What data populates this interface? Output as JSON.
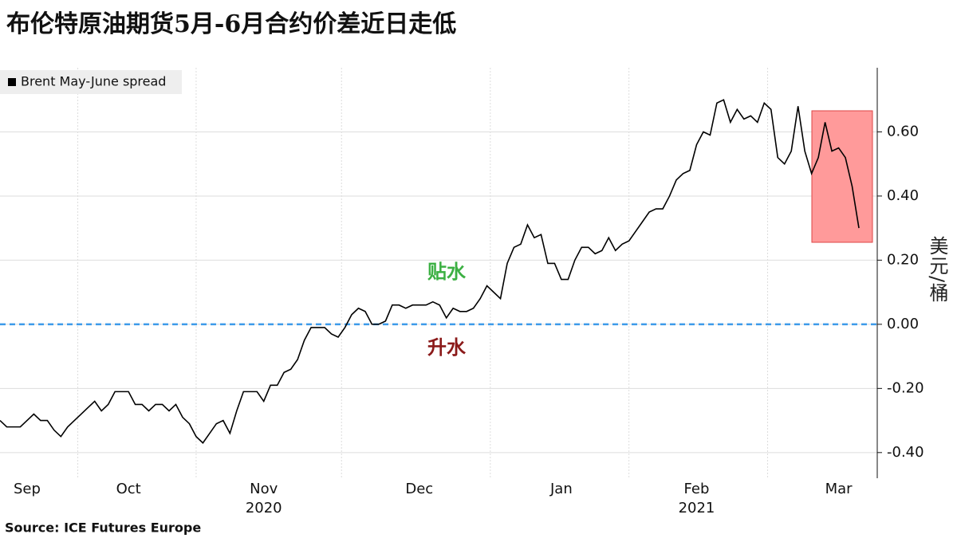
{
  "chart_data": {
    "type": "line",
    "title": "布伦特原油期货5月-6月合约价差近日走低",
    "source": "Source: ICE Futures Europe",
    "y_axis_label": "美元/桶",
    "annotations": [
      {
        "text": "贴水",
        "color": "#3cb043"
      },
      {
        "text": "升水",
        "color": "#8b1a1a"
      }
    ],
    "reference_line": {
      "value": 0,
      "color": "#3d9be9"
    },
    "legend": "top-left",
    "grid": true,
    "categories": [
      null,
      null,
      null,
      null,
      "Sep",
      null,
      null,
      null,
      null,
      null,
      null,
      null,
      null,
      null,
      null,
      null,
      null,
      null,
      null,
      "Oct",
      null,
      null,
      null,
      null,
      null,
      null,
      null,
      null,
      null,
      null,
      null,
      null,
      null,
      null,
      null,
      null,
      null,
      null,
      null,
      "Nov",
      null,
      null,
      null,
      null,
      null,
      null,
      null,
      null,
      null,
      null,
      null,
      null,
      null,
      null,
      null,
      null,
      null,
      null,
      null,
      null,
      null,
      null,
      "Dec",
      null,
      null,
      null,
      null,
      null,
      null,
      null,
      null,
      null,
      null,
      null,
      null,
      null,
      null,
      null,
      null,
      null,
      null,
      null,
      null,
      "Jan",
      null,
      null,
      null,
      null,
      null,
      null,
      null,
      null,
      null,
      null,
      null,
      null,
      null,
      null,
      null,
      null,
      null,
      null,
      null,
      "Feb",
      null,
      null,
      null,
      null,
      null,
      null,
      null,
      null,
      null,
      null,
      null,
      null,
      null,
      null,
      null,
      null,
      null,
      null,
      null,
      null,
      "Mar",
      null,
      null,
      null
    ],
    "category_years": [
      null,
      null,
      null,
      null,
      null,
      null,
      null,
      null,
      null,
      null,
      null,
      null,
      null,
      null,
      null,
      null,
      null,
      null,
      null,
      null,
      null,
      null,
      null,
      null,
      null,
      null,
      null,
      null,
      null,
      null,
      null,
      null,
      null,
      null,
      null,
      null,
      null,
      null,
      null,
      "2020",
      null,
      null,
      null,
      null,
      null,
      null,
      null,
      null,
      null,
      null,
      null,
      null,
      null,
      null,
      null,
      null,
      null,
      null,
      null,
      null,
      null,
      null,
      null,
      null,
      null,
      null,
      null,
      null,
      null,
      null,
      null,
      null,
      null,
      null,
      null,
      null,
      null,
      null,
      null,
      null,
      null,
      null,
      null,
      null,
      null,
      null,
      null,
      null,
      null,
      null,
      null,
      null,
      null,
      null,
      null,
      null,
      null,
      null,
      null,
      null,
      null,
      null,
      null,
      "2021",
      null,
      null,
      null,
      null,
      null,
      null,
      null,
      null,
      null,
      null,
      null,
      null,
      null,
      null,
      null,
      null,
      null,
      null,
      null,
      null,
      null,
      null,
      null,
      null
    ],
    "series": [
      {
        "name": "Brent May-June spread",
        "color": "#000000",
        "values": [
          -0.3,
          -0.32,
          -0.32,
          -0.32,
          -0.3,
          -0.28,
          -0.3,
          -0.3,
          -0.33,
          -0.35,
          -0.32,
          -0.3,
          -0.28,
          -0.26,
          -0.24,
          -0.27,
          -0.25,
          -0.21,
          -0.21,
          -0.21,
          -0.25,
          -0.25,
          -0.27,
          -0.25,
          -0.25,
          -0.27,
          -0.25,
          -0.29,
          -0.31,
          -0.35,
          -0.37,
          -0.34,
          -0.31,
          -0.3,
          -0.34,
          -0.27,
          -0.21,
          -0.21,
          -0.21,
          -0.24,
          -0.19,
          -0.19,
          -0.15,
          -0.14,
          -0.11,
          -0.05,
          -0.01,
          -0.01,
          -0.01,
          -0.03,
          -0.04,
          -0.01,
          0.03,
          0.05,
          0.04,
          0.0,
          0.0,
          0.01,
          0.06,
          0.06,
          0.05,
          0.06,
          0.06,
          0.06,
          0.07,
          0.06,
          0.02,
          0.05,
          0.04,
          0.04,
          0.05,
          0.08,
          0.12,
          0.1,
          0.08,
          0.19,
          0.24,
          0.25,
          0.31,
          0.27,
          0.28,
          0.19,
          0.19,
          0.14,
          0.14,
          0.2,
          0.24,
          0.24,
          0.22,
          0.23,
          0.27,
          0.23,
          0.25,
          0.26,
          0.29,
          0.32,
          0.35,
          0.36,
          0.36,
          0.4,
          0.45,
          0.47,
          0.48,
          0.56,
          0.6,
          0.59,
          0.69,
          0.7,
          0.63,
          0.67,
          0.64,
          0.65,
          0.63,
          0.69,
          0.67,
          0.52,
          0.5,
          0.54,
          0.68,
          0.54,
          0.47,
          0.52,
          0.63,
          0.54,
          0.55,
          0.52,
          0.43,
          0.3
        ]
      }
    ],
    "ylim": [
      -0.48,
      0.8
    ],
    "yticks": [
      {
        "value": -0.4,
        "label": "-0.40"
      },
      {
        "value": -0.2,
        "label": "-0.20"
      },
      {
        "value": 0,
        "label": "0.00"
      },
      {
        "value": 0.2,
        "label": "0.20"
      },
      {
        "value": 0.4,
        "label": "0.40"
      },
      {
        "value": 0.6,
        "label": "0.60"
      }
    ]
  }
}
